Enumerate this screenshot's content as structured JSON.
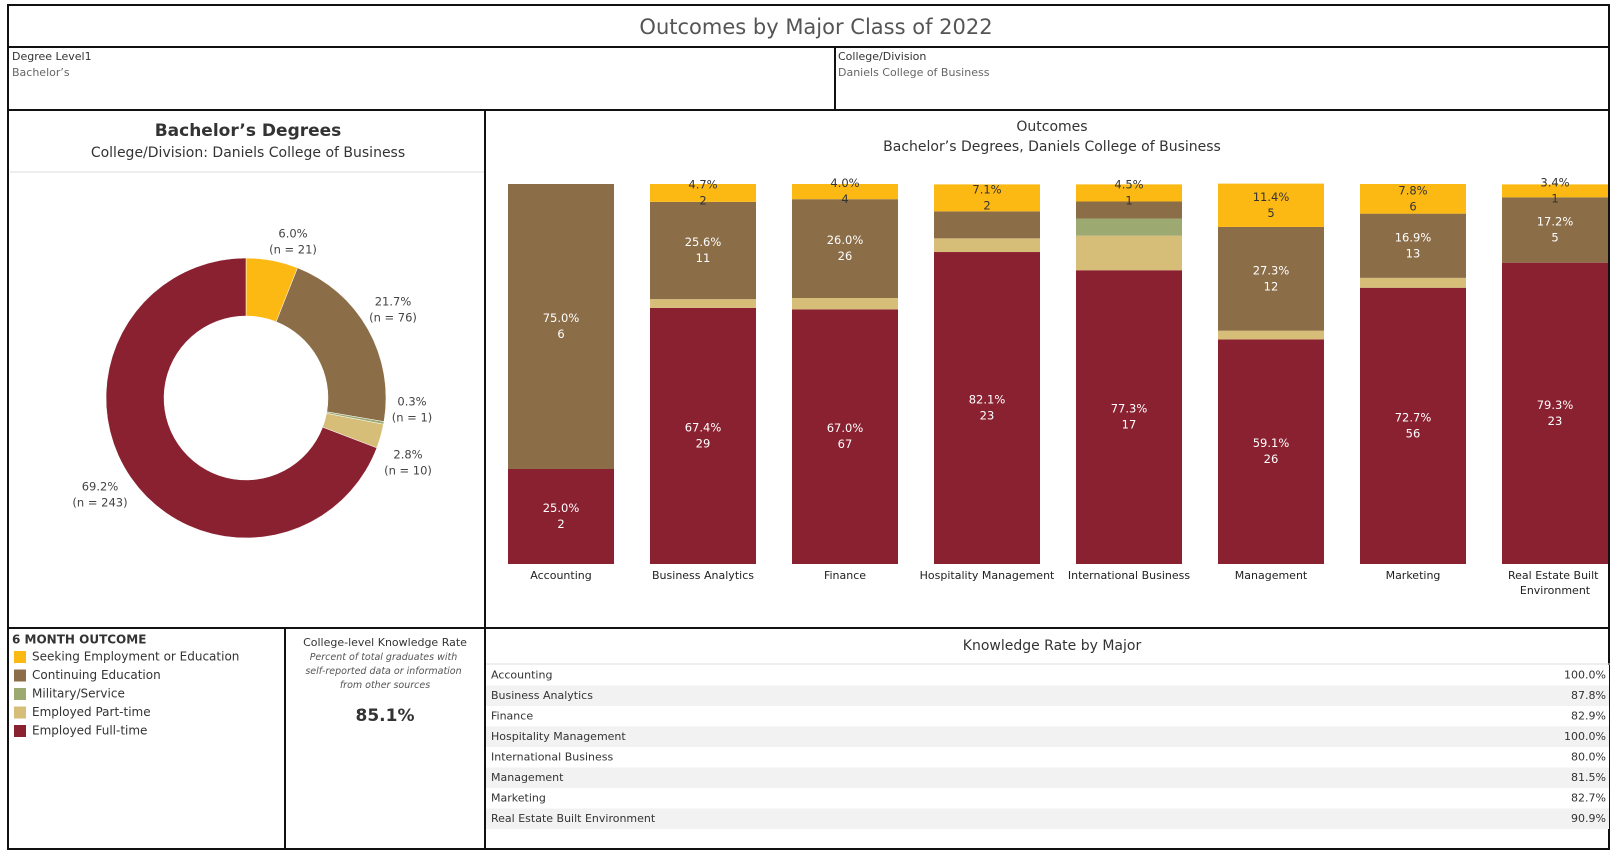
{
  "title": "Outcomes by Major Class of 2022",
  "filters": [
    {
      "label": "Degree Level1",
      "value": "Bachelor’s"
    },
    {
      "label": "College/Division",
      "value": "Daniels College of Business"
    }
  ],
  "chart_data": [
    {
      "type": "pie",
      "title": "Bachelor’s Degrees",
      "subtitle": "College/Division: Daniels College of Business",
      "categories": [
        "Seeking Employment or Education",
        "Continuing Education",
        "Military/Service",
        "Employed Part-time",
        "Employed Full-time"
      ],
      "values": [
        6.0,
        21.7,
        0.3,
        2.8,
        69.2
      ],
      "value_labels": [
        "6.0%",
        "21.7%",
        "0.3%",
        "2.8%",
        "69.2%"
      ],
      "counts": [
        21,
        76,
        1,
        10,
        243
      ],
      "count_labels": [
        "(n = 21)",
        "(n = 76)",
        "(n = 1)",
        "(n = 10)",
        "(n = 243)"
      ],
      "colors": [
        "#fdb913",
        "#8b6d47",
        "#9caa72",
        "#d6bd78",
        "#8a2131"
      ],
      "hole": true
    },
    {
      "type": "stacked_bar",
      "title": "Outcomes",
      "subtitle": "Bachelor’s Degrees, Daniels College of Business",
      "categories": [
        "Accounting",
        "Business Analytics",
        "Finance",
        "Hospitality Management",
        "International Business",
        "Management",
        "Marketing",
        "Real Estate Built Environment"
      ],
      "ylim": [
        0,
        100
      ],
      "series": [
        {
          "name": "Seeking Employment or Education",
          "color": "#fdb913",
          "values": [
            0,
            4.7,
            4.0,
            7.1,
            4.5,
            11.4,
            7.8,
            3.4
          ],
          "value_labels": [
            null,
            "4.7%",
            "4.0%",
            "7.1%",
            "4.5%",
            "11.4%",
            "7.8%",
            "3.4%"
          ],
          "counts": [
            null,
            2,
            4,
            2,
            1,
            5,
            6,
            1
          ]
        },
        {
          "name": "Continuing Education",
          "color": "#8b6d47",
          "values": [
            75.0,
            25.6,
            26.0,
            7.1,
            4.5,
            27.3,
            16.9,
            17.2
          ],
          "value_labels": [
            "75.0%",
            "25.6%",
            "26.0%",
            null,
            null,
            "27.3%",
            "16.9%",
            "17.2%"
          ],
          "counts": [
            6,
            11,
            26,
            null,
            null,
            12,
            13,
            5
          ]
        },
        {
          "name": "Military/Service",
          "color": "#9caa72",
          "values": [
            0,
            0,
            0,
            0,
            4.5,
            0,
            0,
            0
          ],
          "value_labels": [
            null,
            null,
            null,
            null,
            null,
            null,
            null,
            null
          ],
          "counts": [
            null,
            null,
            null,
            null,
            null,
            null,
            null,
            null
          ]
        },
        {
          "name": "Employed Part-time",
          "color": "#d6bd78",
          "values": [
            0,
            2.3,
            3.0,
            3.6,
            9.1,
            2.3,
            2.6,
            0
          ],
          "value_labels": [
            null,
            null,
            null,
            null,
            null,
            null,
            null,
            null
          ],
          "counts": [
            null,
            null,
            null,
            null,
            null,
            null,
            null,
            null
          ]
        },
        {
          "name": "Employed Full-time",
          "color": "#8a2131",
          "values": [
            25.0,
            67.4,
            67.0,
            82.1,
            77.3,
            59.1,
            72.7,
            79.3
          ],
          "value_labels": [
            "25.0%",
            "67.4%",
            "67.0%",
            "82.1%",
            "77.3%",
            "59.1%",
            "72.7%",
            "79.3%"
          ],
          "counts": [
            2,
            29,
            67,
            23,
            17,
            26,
            56,
            23
          ]
        }
      ]
    }
  ],
  "legend": {
    "title": "6 MONTH OUTCOME"
  },
  "knowledge_rate": {
    "title": "College-level Knowledge Rate",
    "note": "Percent of total graduates with self-reported data or information from other sources",
    "rate": {
      "value": 85.1,
      "label": "85.1%"
    }
  },
  "table": {
    "title": "Knowledge Rate by Major",
    "rows": [
      [
        "Accounting",
        "100.0%"
      ],
      [
        "Business Analytics",
        "87.8%"
      ],
      [
        "Finance",
        "82.9%"
      ],
      [
        "Hospitality Management",
        "100.0%"
      ],
      [
        "International Business",
        "80.0%"
      ],
      [
        "Management",
        "81.5%"
      ],
      [
        "Marketing",
        "82.7%"
      ],
      [
        "Real Estate Built Environment",
        "90.9%"
      ]
    ]
  }
}
